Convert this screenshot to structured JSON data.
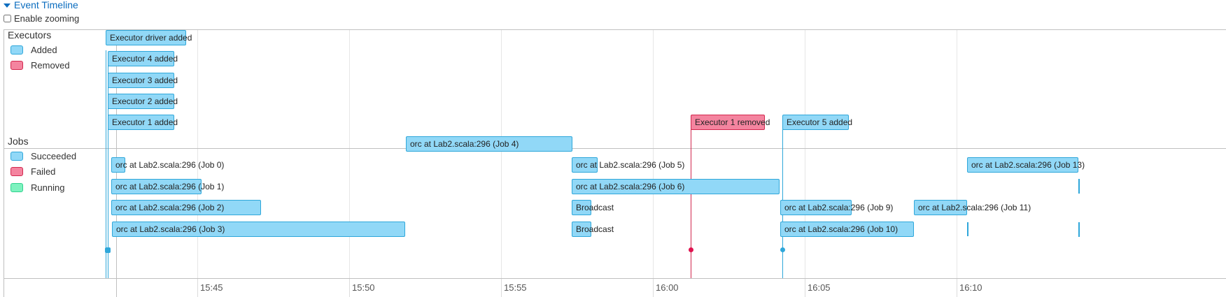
{
  "header": {
    "title": "Event Timeline",
    "zoom_label": "Enable zooming",
    "zoom_checked": false
  },
  "groups": {
    "executors": {
      "title": "Executors",
      "legend": [
        {
          "label": "Added",
          "fill": "#91d8f7",
          "border": "#2fa7da"
        },
        {
          "label": "Removed",
          "fill": "#f4849f",
          "border": "#d2284e"
        }
      ]
    },
    "jobs": {
      "title": "Jobs",
      "legend": [
        {
          "label": "Succeeded",
          "fill": "#91d8f7",
          "border": "#2fa7da"
        },
        {
          "label": "Failed",
          "fill": "#f4849f",
          "border": "#d2284e"
        },
        {
          "label": "Running",
          "fill": "#7ef2bf",
          "border": "#30d28e"
        }
      ]
    }
  },
  "colors": {
    "added": "#91d8f7",
    "added_border": "#2fa7da",
    "removed": "#f4849f",
    "removed_border": "#d2284e",
    "link": "#0b6dbf"
  },
  "axis": {
    "ticks": [
      "15:45",
      "15:50",
      "15:55",
      "16:00",
      "16:05",
      "16:10"
    ]
  },
  "executor_events": [
    {
      "label": "Executor driver added",
      "type": "added"
    },
    {
      "label": "Executor 4 added",
      "type": "added"
    },
    {
      "label": "Executor 3 added",
      "type": "added"
    },
    {
      "label": "Executor 2 added",
      "type": "added"
    },
    {
      "label": "Executor 1 added",
      "type": "added"
    },
    {
      "label": "Executor 1 removed",
      "type": "removed"
    },
    {
      "label": "Executor 5 added",
      "type": "added"
    }
  ],
  "jobs": [
    {
      "label": "orc at Lab2.scala:296 (Job 4)"
    },
    {
      "label": "orc at Lab2.scala:296 (Job 0)"
    },
    {
      "label": "orc at Lab2.scala:296 (Job 1)"
    },
    {
      "label": "orc at Lab2.scala:296 (Job 2)"
    },
    {
      "label": "orc at Lab2.scala:296 (Job 3)"
    },
    {
      "label": "orc at Lab2.scala:296 (Job 5)"
    },
    {
      "label": "orc at Lab2.scala:296 (Job 6)"
    },
    {
      "label": "Broadcast"
    },
    {
      "label": "Broadcast"
    },
    {
      "label": "orc at Lab2.scala:296 (Job 9)"
    },
    {
      "label": "orc at Lab2.scala:296 (Job 10)"
    },
    {
      "label": "orc at Lab2.scala:296 (Job 11)"
    },
    {
      "label": "orc at Lab2.scala:296 (Job 13)"
    }
  ]
}
